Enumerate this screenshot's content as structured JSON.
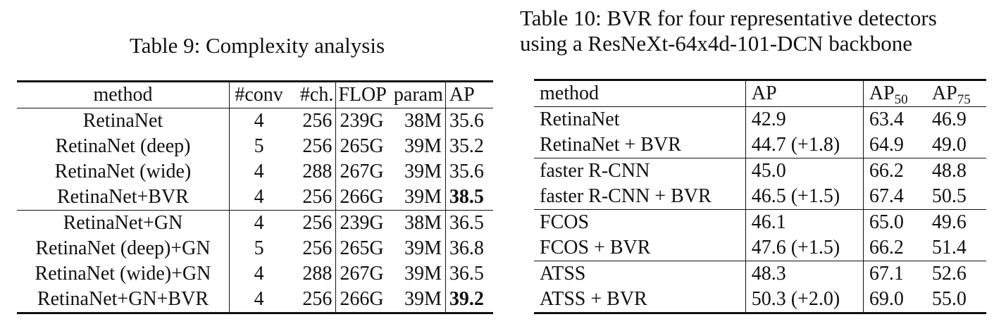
{
  "table9": {
    "caption": "Table 9: Complexity analysis",
    "headers": {
      "method": "method",
      "conv": "#conv",
      "ch": "#ch.",
      "flop": "FLOP",
      "param": "param",
      "ap": "AP"
    },
    "rows": [
      {
        "method": "RetinaNet",
        "conv": "4",
        "ch": "256",
        "flop": "239G",
        "param": "38M",
        "ap": "35.6"
      },
      {
        "method": "RetinaNet (deep)",
        "conv": "5",
        "ch": "256",
        "flop": "265G",
        "param": "39M",
        "ap": "35.2"
      },
      {
        "method": "RetinaNet (wide)",
        "conv": "4",
        "ch": "288",
        "flop": "267G",
        "param": "39M",
        "ap": "35.6"
      },
      {
        "method": "RetinaNet+BVR",
        "conv": "4",
        "ch": "256",
        "flop": "266G",
        "param": "39M",
        "ap": "38.5"
      },
      {
        "method": "RetinaNet+GN",
        "conv": "4",
        "ch": "256",
        "flop": "239G",
        "param": "38M",
        "ap": "36.5"
      },
      {
        "method": "RetinaNet (deep)+GN",
        "conv": "5",
        "ch": "256",
        "flop": "265G",
        "param": "39M",
        "ap": "36.8"
      },
      {
        "method": "RetinaNet (wide)+GN",
        "conv": "4",
        "ch": "288",
        "flop": "267G",
        "param": "39M",
        "ap": "36.5"
      },
      {
        "method": "RetinaNet+GN+BVR",
        "conv": "4",
        "ch": "256",
        "flop": "266G",
        "param": "39M",
        "ap": "39.2"
      }
    ]
  },
  "table10": {
    "caption_line1": "Table 10: BVR for four representative detectors",
    "caption_line2": "using a ResNeXt-64x4d-101-DCN backbone",
    "headers": {
      "method": "method",
      "ap": "AP",
      "ap50_base": "AP",
      "ap50_sub": "50",
      "ap75_base": "AP",
      "ap75_sub": "75"
    },
    "rows": [
      {
        "method": "RetinaNet",
        "ap": "42.9",
        "ap50": "63.4",
        "ap75": "46.9"
      },
      {
        "method": "RetinaNet + BVR",
        "ap": "44.7 (+1.8)",
        "ap50": "64.9",
        "ap75": "49.0"
      },
      {
        "method": "faster R-CNN",
        "ap": "45.0",
        "ap50": "66.2",
        "ap75": "48.8"
      },
      {
        "method": "faster R-CNN + BVR",
        "ap": "46.5 (+1.5)",
        "ap50": "67.4",
        "ap75": "50.5"
      },
      {
        "method": "FCOS",
        "ap": "46.1",
        "ap50": "65.0",
        "ap75": "49.6"
      },
      {
        "method": "FCOS + BVR",
        "ap": "47.6 (+1.5)",
        "ap50": "66.2",
        "ap75": "51.4"
      },
      {
        "method": "ATSS",
        "ap": "48.3",
        "ap50": "67.1",
        "ap75": "52.6"
      },
      {
        "method": "ATSS + BVR",
        "ap": "50.3 (+2.0)",
        "ap50": "69.0",
        "ap75": "55.0"
      }
    ]
  }
}
